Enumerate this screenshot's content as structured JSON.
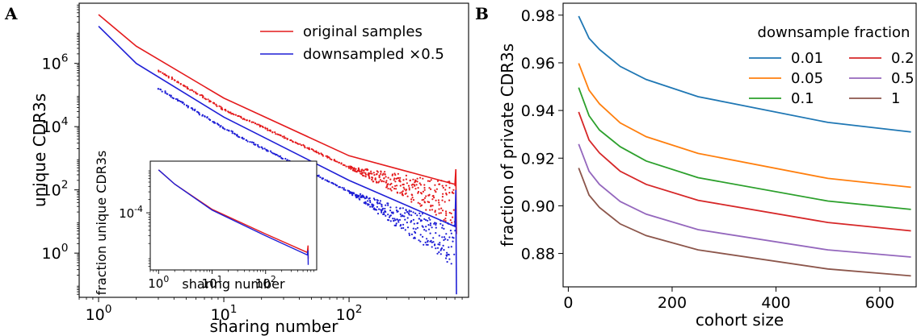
{
  "chart_data": [
    {
      "panel": "A",
      "type": "line",
      "xlabel": "sharing number",
      "ylabel": "unique CDR3s",
      "xscale": "log",
      "yscale": "log",
      "xlim": [
        0.7,
        900
      ],
      "ylim": [
        0.04,
        80000000
      ],
      "x_ticks": [
        {
          "value": 1,
          "exp": "0"
        },
        {
          "value": 10,
          "exp": "1"
        },
        {
          "value": 100,
          "exp": "2"
        }
      ],
      "y_ticks": [
        {
          "value": 1,
          "exp": "0"
        },
        {
          "value": 100,
          "exp": "2"
        },
        {
          "value": 10000,
          "exp": "4"
        },
        {
          "value": 1000000,
          "exp": "6"
        }
      ],
      "tick_base": "10",
      "legend_position": "upper right",
      "series": [
        {
          "name": "original samples",
          "color": "#e41a1c",
          "x": [
            1,
            2,
            10,
            100,
            700,
            712,
            720
          ],
          "y": [
            35000000,
            3500000,
            80000,
            1200,
            150,
            450,
            4
          ]
        },
        {
          "name": "downsampled ×0.5",
          "color": "#1f1fd6",
          "x": [
            1,
            2,
            10,
            100,
            700,
            712,
            720
          ],
          "y": [
            15000000,
            1000000,
            20000,
            200,
            7,
            100,
            0.05
          ]
        }
      ],
      "inset": {
        "xlabel": "sharing number",
        "ylabel": "fraction unique CDR3s",
        "xlim": [
          0.7,
          900
        ],
        "ylim": [
          5e-06,
          0.0015
        ],
        "x_ticks": [
          {
            "value": 1,
            "exp": "0"
          },
          {
            "value": 10,
            "exp": "1"
          },
          {
            "value": 100,
            "exp": "2"
          }
        ],
        "y_ticks": [
          {
            "value": 0.0001,
            "exp": "-4"
          }
        ],
        "series": [
          {
            "color": "#e41a1c",
            "x": [
              1,
              2,
              10,
              100,
              600,
              620,
              625
            ],
            "y": [
              0.00095,
              0.00045,
              0.00012,
              3.3e-05,
              1.25e-05,
              1.8e-05,
              9e-06
            ]
          },
          {
            "color": "#1f1fd6",
            "x": [
              1,
              2,
              10,
              100,
              600,
              620,
              625
            ],
            "y": [
              0.00095,
              0.00045,
              0.000115,
              3e-05,
              1.1e-05,
              1.4e-05,
              6.5e-06
            ]
          }
        ]
      }
    },
    {
      "panel": "B",
      "type": "line",
      "xlabel": "cohort size",
      "ylabel": "fraction of private CDR3s",
      "xlim": [
        -10,
        670
      ],
      "ylim": [
        0.866,
        0.985
      ],
      "x_ticks": [
        0,
        200,
        400,
        600
      ],
      "y_ticks": [
        "0.88",
        "0.90",
        "0.92",
        "0.94",
        "0.96",
        "0.98"
      ],
      "legend_title": "downsample fraction",
      "legend_position": "upper right",
      "x": [
        20,
        40,
        60,
        100,
        150,
        250,
        500,
        660
      ],
      "series": [
        {
          "name": "0.01",
          "color": "#1f77b4",
          "values": [
            0.9796,
            0.9703,
            0.9656,
            0.9585,
            0.953,
            0.9458,
            0.935,
            0.931
          ]
        },
        {
          "name": "0.05",
          "color": "#ff7f0e",
          "values": [
            0.9598,
            0.9485,
            0.9428,
            0.9348,
            0.929,
            0.922,
            0.9115,
            0.9078
          ]
        },
        {
          "name": "0.1",
          "color": "#2ca02c",
          "values": [
            0.9496,
            0.9378,
            0.9318,
            0.9248,
            0.9188,
            0.9118,
            0.902,
            0.8985
          ]
        },
        {
          "name": "0.2",
          "color": "#d62728",
          "values": [
            0.9394,
            0.9276,
            0.9222,
            0.9145,
            0.909,
            0.9023,
            0.893,
            0.8895
          ]
        },
        {
          "name": "0.5",
          "color": "#9467bd",
          "values": [
            0.9259,
            0.9145,
            0.909,
            0.9018,
            0.8965,
            0.89,
            0.8815,
            0.8785
          ]
        },
        {
          "name": "1",
          "color": "#8c564b",
          "values": [
            0.9159,
            0.9045,
            0.8993,
            0.8924,
            0.8875,
            0.8815,
            0.8735,
            0.8706
          ]
        }
      ]
    }
  ]
}
